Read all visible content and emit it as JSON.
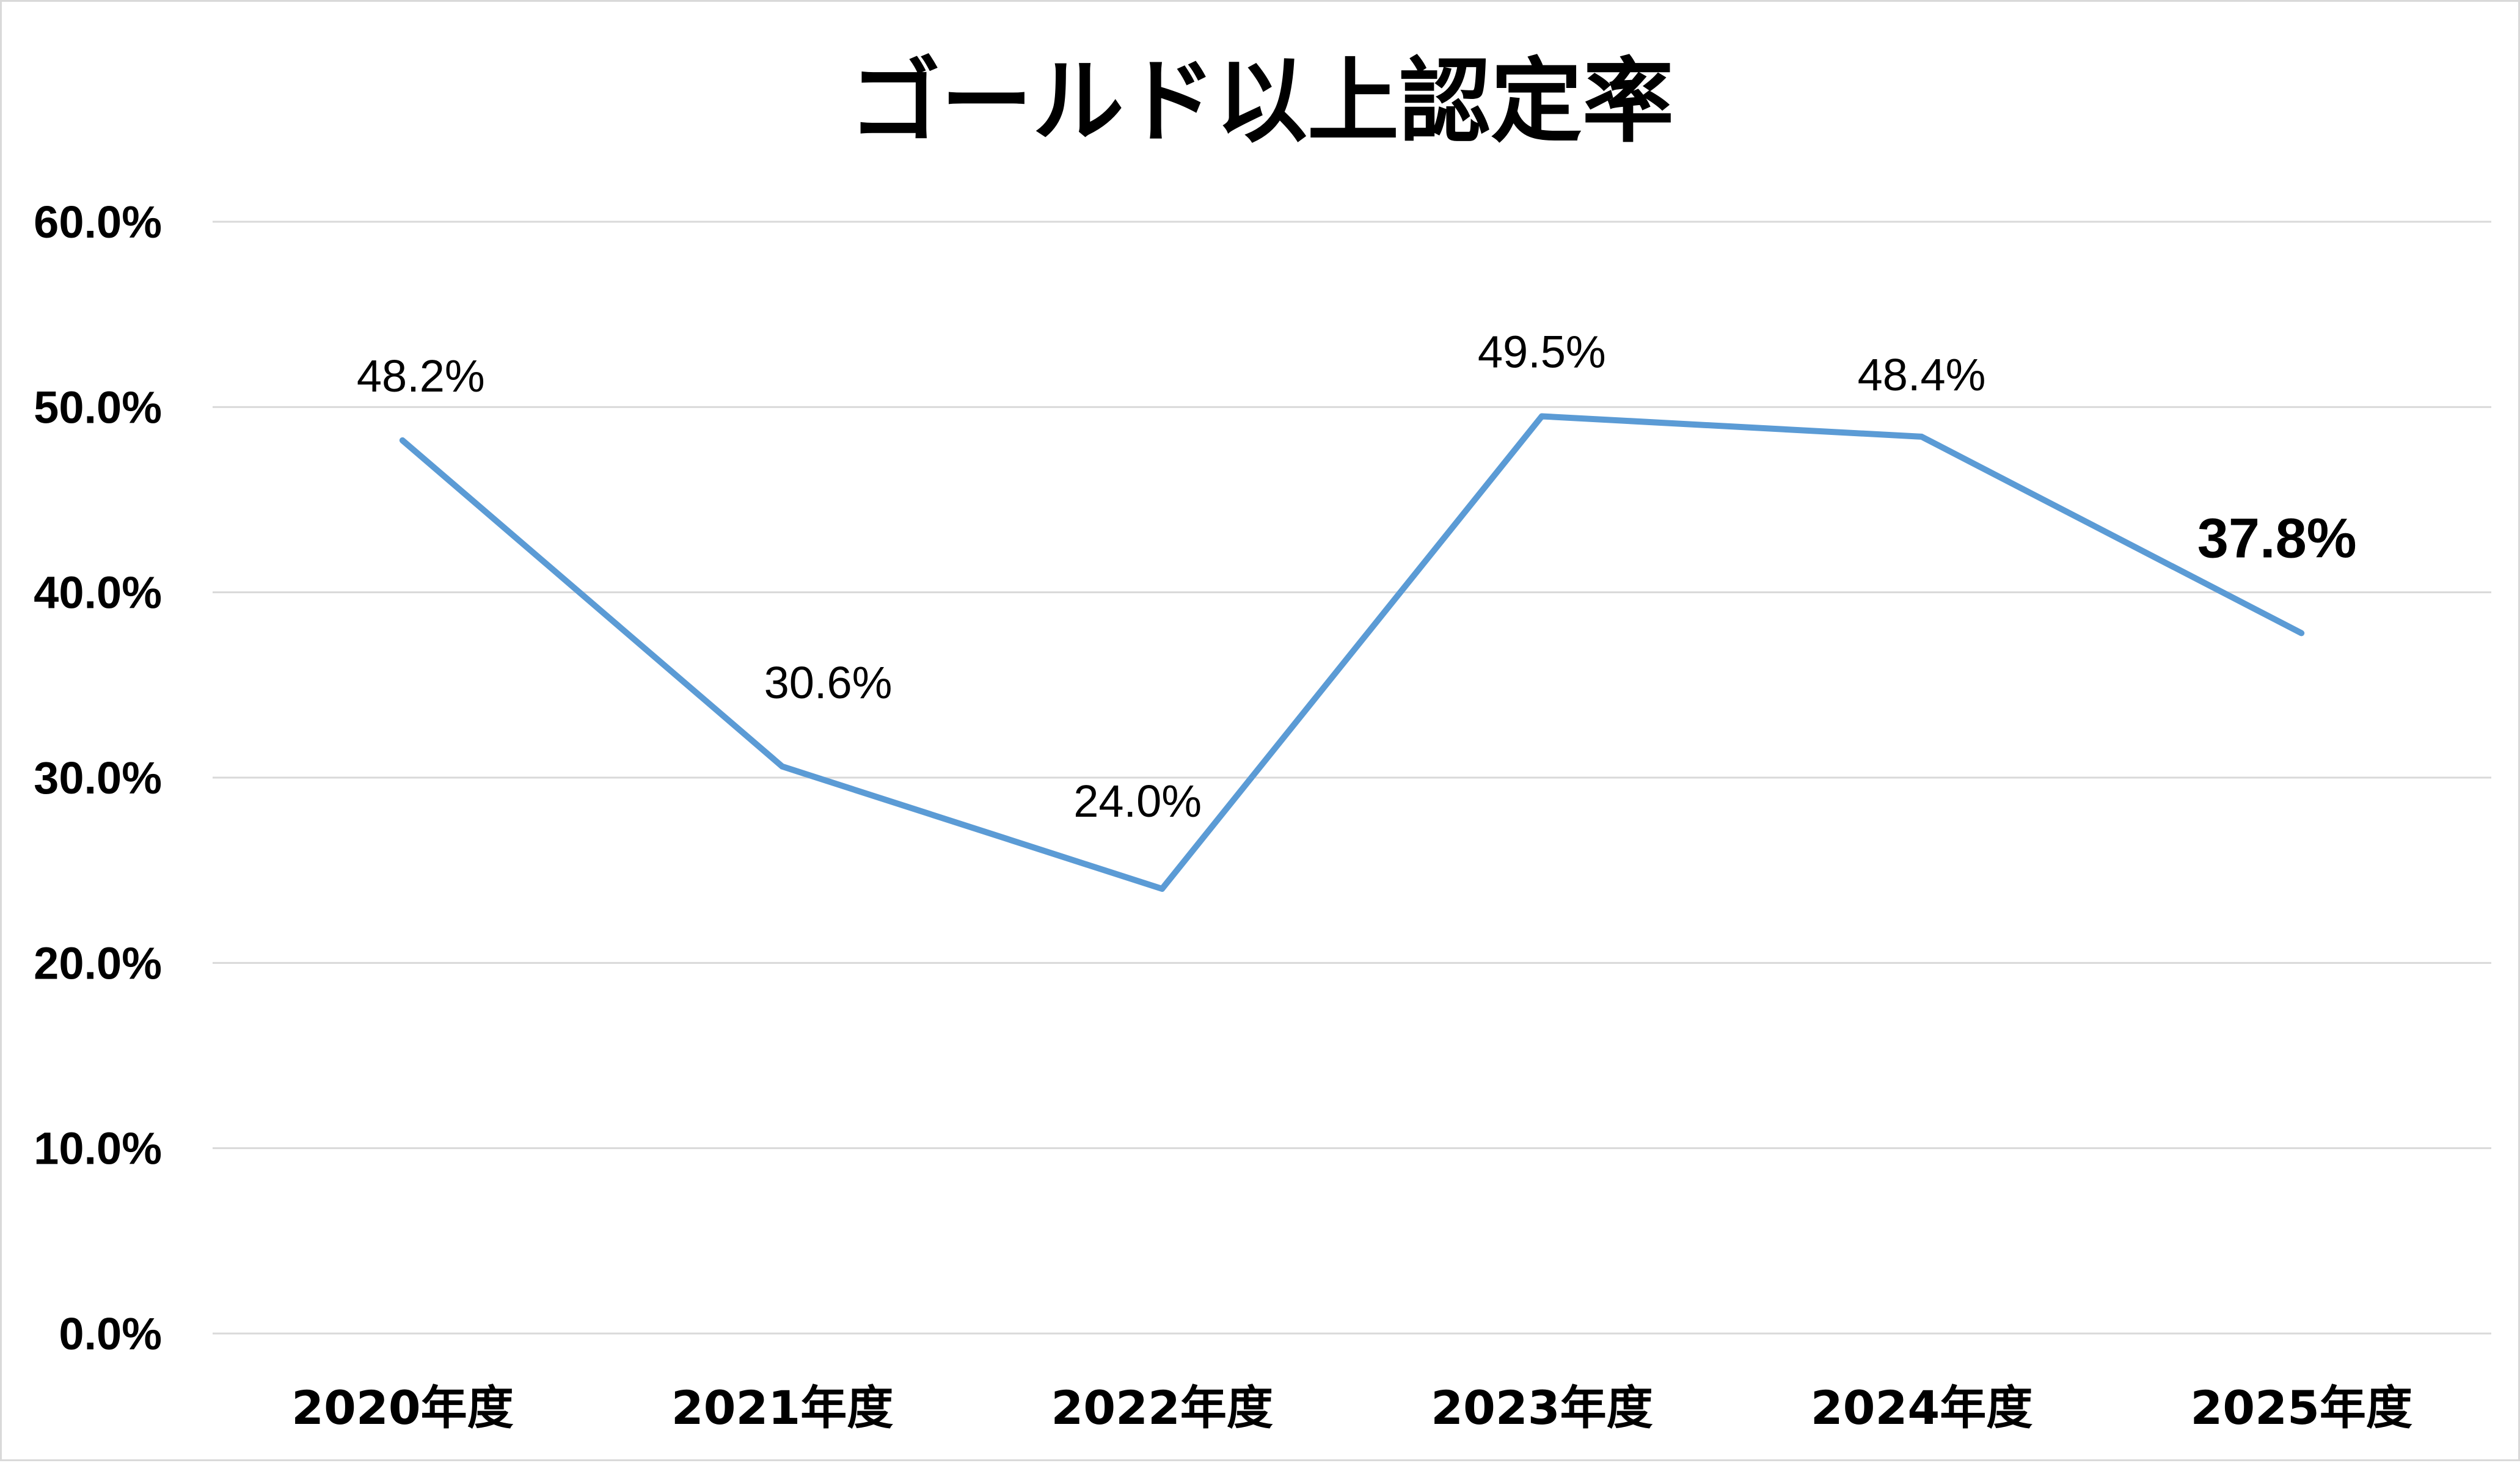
{
  "chart_data": {
    "type": "line",
    "title": "ゴールド以上認定率",
    "xlabel": "",
    "ylabel": "",
    "categories": [
      "2020年度",
      "2021年度",
      "2022年度",
      "2023年度",
      "2024年度",
      "2025年度"
    ],
    "series": [
      {
        "values": [
          48.2,
          30.6,
          24.0,
          49.5,
          48.4,
          37.8
        ],
        "color": "#5B9BD5"
      }
    ],
    "data_labels": [
      "48.2%",
      "30.6%",
      "24.0%",
      "49.5%",
      "48.4%",
      "37.8%"
    ],
    "highlighted_label_index": 5,
    "ylim": [
      0,
      60
    ],
    "yticks": [
      0,
      10,
      20,
      30,
      40,
      50,
      60
    ],
    "ytick_labels": [
      "0.0%",
      "10.0%",
      "20.0%",
      "30.0%",
      "40.0%",
      "50.0%",
      "60.0%"
    ],
    "grid": true,
    "legend": "none"
  }
}
